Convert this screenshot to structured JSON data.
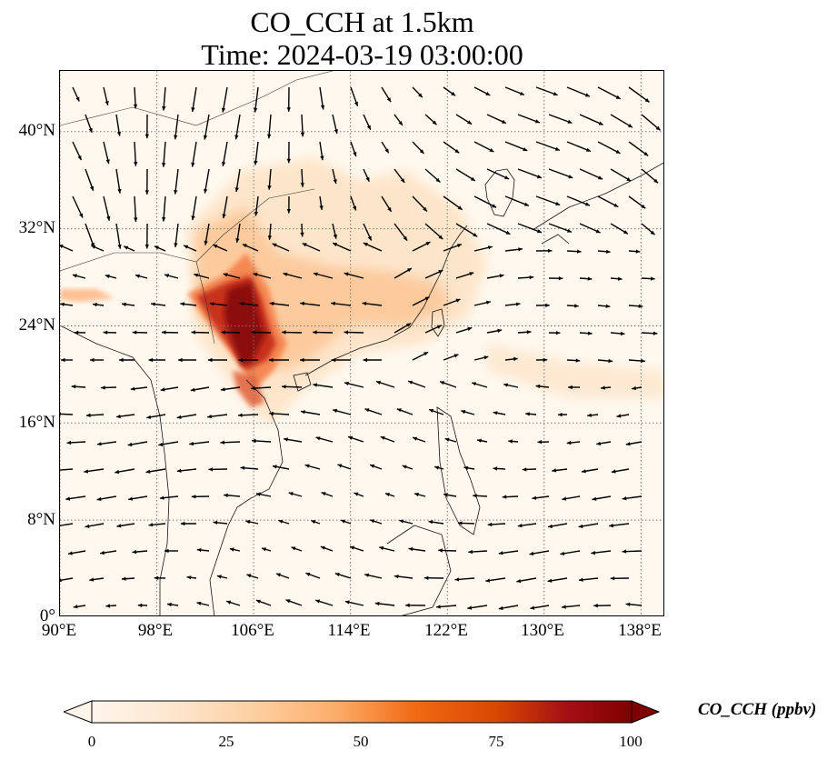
{
  "title": {
    "line1": "CO_CCH at 1.5km",
    "line2": "Time: 2024-03-19 03:00:00"
  },
  "map": {
    "lon_range": [
      90,
      140
    ],
    "lat_range": [
      0,
      45
    ],
    "lat_ticks": [
      "0°",
      "8°N",
      "16°N",
      "24°N",
      "32°N",
      "40°N"
    ],
    "lon_ticks": [
      "90°E",
      "98°E",
      "106°E",
      "114°E",
      "122°E",
      "130°E",
      "138°E"
    ],
    "gridlines": true,
    "projection": "PlateCarree"
  },
  "colorbar": {
    "label": "CO_CCH (ppbv)",
    "ticks": [
      "0",
      "25",
      "50",
      "75",
      "100"
    ],
    "colors": [
      "#fff5eb",
      "#fdd49e",
      "#fdae6b",
      "#f16913",
      "#d94801",
      "#a50f15",
      "#7f0000"
    ],
    "extend": "both"
  }
}
